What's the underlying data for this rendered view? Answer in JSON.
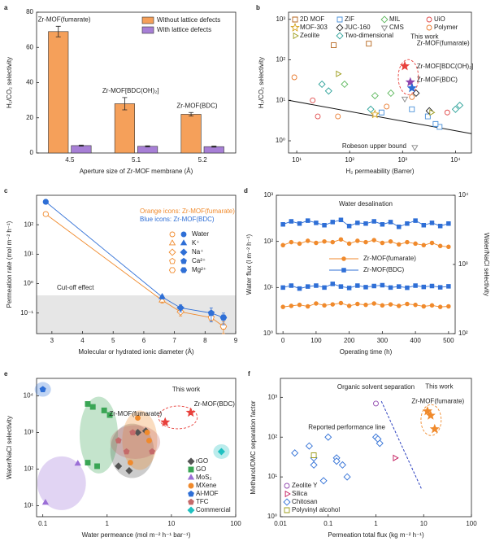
{
  "chart_data": [
    {
      "type": "bar",
      "label": "a",
      "xlabel": "Aperture size of Zr-MOF membrane (Å)",
      "ylabel": "H₂/CO₂ selectivity",
      "categories": [
        "4.5",
        "5.1",
        "5.2"
      ],
      "annotations": [
        "Zr-MOF(fumarate)",
        "Zr-MOF[BDC(OH)₂]",
        "Zr-MOF(BDC)"
      ],
      "series": [
        {
          "name": "Without lattice defects",
          "color": "#f5a05a",
          "values": [
            69,
            28,
            22
          ],
          "errors": [
            3,
            3.5,
            1
          ]
        },
        {
          "name": "With lattice defects",
          "color": "#a77fd6",
          "values": [
            4.2,
            3.8,
            3.6
          ],
          "errors": [
            0.3,
            0.3,
            0.3
          ]
        }
      ],
      "ylim": [
        0,
        80
      ],
      "yticks": [
        0,
        20,
        40,
        60,
        80
      ],
      "legend": "upper right"
    },
    {
      "type": "scatter",
      "label": "b",
      "xlabel": "H₂ permeability (Barrer)",
      "ylabel": "H₂/CO₂ selectivity",
      "xlog": true,
      "ylog": true,
      "open_markers": true,
      "xlim": [
        7,
        20000
      ],
      "ylim": [
        0.5,
        1500
      ],
      "xticks": [
        {
          "value": 10,
          "label": "10¹"
        },
        {
          "value": 100,
          "label": "10²"
        },
        {
          "value": 1000,
          "label": "10³"
        },
        {
          "value": 10000,
          "label": "10⁴"
        }
      ],
      "yticks": [
        {
          "value": 1,
          "label": "10⁰"
        },
        {
          "value": 10,
          "label": "10¹"
        },
        {
          "value": 100,
          "label": "10²"
        },
        {
          "value": 1000,
          "label": "10³"
        }
      ],
      "legend": "top",
      "series": [
        {
          "name": "2D MOF",
          "color": "#b5651d",
          "marker": "square",
          "x": [
            50,
            230
          ],
          "values": [
            230,
            250
          ]
        },
        {
          "name": "ZIF",
          "color": "#4a90d9",
          "marker": "square",
          "x": [
            400,
            1500,
            3000,
            5000,
            4200
          ],
          "values": [
            5,
            6,
            4,
            2.2,
            2.6
          ]
        },
        {
          "name": "MIL",
          "color": "#5cb85c",
          "marker": "diamond",
          "x": [
            80,
            300,
            600
          ],
          "values": [
            25,
            13,
            15
          ]
        },
        {
          "name": "UiO",
          "color": "#e04848",
          "marker": "circle",
          "x": [
            20,
            7000,
            25
          ],
          "values": [
            10,
            5,
            4
          ]
        },
        {
          "name": "MOF-303",
          "color": "#d4a017",
          "marker": "star",
          "x": [
            300
          ],
          "values": [
            4.5
          ]
        },
        {
          "name": "JUC-160",
          "color": "#222222",
          "marker": "diamond",
          "x": [
            1800,
            3200
          ],
          "values": [
            15,
            5.5
          ]
        },
        {
          "name": "CMS",
          "color": "#888888",
          "marker": "tri-down",
          "x": [
            1700,
            1100
          ],
          "values": [
            0.7,
            11
          ]
        },
        {
          "name": "Polymer",
          "color": "#e87a2e",
          "marker": "circle",
          "x": [
            9,
            500,
            1500,
            60
          ],
          "values": [
            37,
            7,
            12,
            4
          ]
        },
        {
          "name": "Zeolite",
          "color": "#9c9c1a",
          "marker": "tri-right",
          "x": [
            60,
            3500
          ],
          "values": [
            45,
            5
          ]
        },
        {
          "name": "Two-dimensional",
          "color": "#2aa198",
          "marker": "diamond",
          "x": [
            30,
            12000,
            10000,
            250,
            40
          ],
          "values": [
            25,
            7.5,
            6,
            6,
            17
          ]
        }
      ],
      "line": {
        "name": "Robeson upper bound",
        "x": [
          7,
          20000
        ],
        "values": [
          10,
          1.5
        ]
      },
      "highlight": {
        "x": [
          1100,
          1400,
          1500
        ],
        "values": [
          70,
          28,
          20
        ],
        "labels": [
          "Zr-MOF(fumarate)",
          "Zr-MOF[BDC(OH)₂]",
          "Zr-MOF(BDC)"
        ],
        "colors": [
          "#e8413c",
          "#8e44ad",
          "#2d6fd6"
        ]
      },
      "note": "This work"
    },
    {
      "type": "line",
      "label": "c",
      "xlabel": "Molecular or hydrated ionic diameter (Å)",
      "ylabel": "Permeation rate (mol m⁻² h⁻¹)",
      "ylog": true,
      "xlim": [
        2.5,
        9
      ],
      "xticks": [
        3,
        4,
        5,
        6,
        7,
        8,
        9
      ],
      "ylim": [
        0.02,
        1000
      ],
      "yticks": [
        {
          "value": 0.1,
          "label": "10⁻¹"
        },
        {
          "value": 1,
          "label": "10⁰"
        },
        {
          "value": 10,
          "label": "10¹"
        },
        {
          "value": 100,
          "label": "10²"
        }
      ],
      "x": [
        2.8,
        6.6,
        7.2,
        8.2,
        8.6
      ],
      "species": [
        "Water",
        "K⁺",
        "Na⁺",
        "Ca²⁺",
        "Mg²⁺"
      ],
      "markers": [
        "circle",
        "triangle",
        "diamond",
        "pentagon",
        "hexagon"
      ],
      "shade_below": 0.4,
      "shade_label": "Cut-off effect",
      "series": [
        {
          "name": "Orange icons: Zr-MOF(fumarate)",
          "color": "#f08a2c",
          "open": true,
          "values": [
            230,
            0.27,
            0.11,
            0.07,
            0.035
          ],
          "errors": [
            0,
            0.05,
            0.03,
            0.02,
            0.015
          ]
        },
        {
          "name": "Blue icons: Zr-MOF(BDC)",
          "color": "#2f6fd6",
          "open": false,
          "values": [
            600,
            0.35,
            0.15,
            0.1,
            0.07
          ],
          "errors": [
            0,
            0.05,
            0.04,
            0.05,
            0.03
          ]
        }
      ]
    },
    {
      "type": "line",
      "label": "d",
      "title": "Water desalination",
      "xlabel": "Operating time (h)",
      "ylabel": "Water flux (l m⁻² h⁻¹)",
      "y2label": "Water/NaCl selectivity",
      "ylog": true,
      "y2log": true,
      "xlim": [
        -20,
        520
      ],
      "xticks": [
        0,
        100,
        200,
        300,
        400,
        500
      ],
      "ylim": [
        1,
        1000
      ],
      "yticks": [
        {
          "value": 1,
          "label": "10⁰"
        },
        {
          "value": 10,
          "label": "10¹"
        },
        {
          "value": 100,
          "label": "10²"
        },
        {
          "value": 1000,
          "label": "10³"
        }
      ],
      "y2lim": [
        100,
        10000
      ],
      "y2ticks": [
        {
          "value": 100,
          "label": "10²"
        },
        {
          "value": 1000,
          "label": "10³"
        },
        {
          "value": 10000,
          "label": "10⁴"
        }
      ],
      "x": [
        0,
        25,
        50,
        75,
        100,
        125,
        150,
        175,
        200,
        225,
        250,
        275,
        300,
        325,
        350,
        375,
        400,
        425,
        450,
        475,
        500
      ],
      "series": [
        {
          "name": "Zr-MOF(fumarate)",
          "color": "#f08a2c",
          "marker": "circle",
          "values": [
            3.8,
            4.0,
            4.2,
            3.9,
            4.5,
            4.1,
            4.3,
            4.6,
            4.0,
            4.4,
            4.2,
            4.5,
            4.1,
            4.3,
            4.0,
            4.4,
            4.2,
            3.9,
            4.1,
            3.8,
            3.9
          ]
        },
        {
          "name": "Zr-MOF(BDC)",
          "color": "#2f6fd6",
          "marker": "square",
          "values": [
            10,
            11,
            9.5,
            10.5,
            11,
            10,
            12,
            10.5,
            9.8,
            11,
            10.2,
            10.8,
            11.2,
            10,
            10.5,
            9.9,
            11,
            10.3,
            10.8,
            10.1,
            10.6
          ]
        },
        {
          "color": "#f08a2c",
          "marker": "circle",
          "axis": "y2",
          "values": [
            1900,
            2100,
            2000,
            2200,
            2050,
            2150,
            2100,
            2300,
            2000,
            2200,
            2100,
            2250,
            2050,
            2150,
            1950,
            2100,
            2000,
            1900,
            2050,
            1850,
            1800
          ]
        },
        {
          "color": "#2f6fd6",
          "marker": "square",
          "axis": "y2",
          "values": [
            3800,
            4200,
            3900,
            4300,
            4000,
            3700,
            4100,
            4400,
            3600,
            4000,
            3900,
            4200,
            3800,
            4100,
            3500,
            3900,
            4300,
            3700,
            4000,
            3600,
            3900
          ]
        }
      ]
    },
    {
      "type": "scatter",
      "label": "e",
      "xlabel": "Water permeance (mol m⁻² h⁻¹ bar⁻¹)",
      "ylabel": "Water/NaCl selectivity",
      "xlog": true,
      "ylog": true,
      "xlim": [
        0.08,
        100
      ],
      "xticks": [
        0.1,
        1,
        10,
        100
      ],
      "ylim": [
        5,
        30000
      ],
      "yticks": [
        {
          "value": 10,
          "label": "10¹"
        },
        {
          "value": 100,
          "label": "10²"
        },
        {
          "value": 1000,
          "label": "10³"
        },
        {
          "value": 10000,
          "label": "10⁴"
        }
      ],
      "regions": true,
      "legend": "lower right",
      "series": [
        {
          "name": "rGO",
          "color": "#555555",
          "marker": "diamond",
          "x": [
            1.5,
            2.2,
            3,
            4
          ],
          "values": [
            120,
            90,
            1000,
            1100
          ]
        },
        {
          "name": "GO",
          "color": "#3aa655",
          "marker": "square",
          "x": [
            0.5,
            0.6,
            0.9,
            1.1,
            0.5,
            0.7
          ],
          "values": [
            6000,
            5000,
            4000,
            3000,
            150,
            120
          ]
        },
        {
          "name": "MoS₂",
          "color": "#9b6fd6",
          "marker": "triangle",
          "x": [
            0.11,
            0.35
          ],
          "values": [
            12,
            140
          ]
        },
        {
          "name": "MXene",
          "color": "#f08a2c",
          "marker": "circle",
          "x": [
            3,
            4.2,
            4.5,
            2.3
          ],
          "values": [
            2500,
            1000,
            600,
            150
          ]
        },
        {
          "name": "Al-MOF",
          "color": "#2f6fd6",
          "marker": "pentagon",
          "x": [
            0.1
          ],
          "values": [
            15000
          ]
        },
        {
          "name": "TFC",
          "color": "#c46a6a",
          "marker": "pentagon",
          "x": [
            1.5,
            2.5,
            5,
            2
          ],
          "values": [
            600,
            1000,
            300,
            300
          ]
        },
        {
          "name": "Commercial",
          "color": "#1fc1c1",
          "marker": "diamond",
          "x": [
            60
          ],
          "values": [
            300
          ]
        }
      ],
      "highlight": {
        "x": [
          8,
          20
        ],
        "values": [
          1900,
          3500
        ],
        "labels": [
          "Zr-MOF(fumarate)",
          "Zr-MOF(BDC)"
        ],
        "colors": [
          "#e8413c",
          "#e8413c"
        ]
      },
      "note": "This work"
    },
    {
      "type": "scatter",
      "label": "f",
      "title": "Organic solvent separation",
      "xlabel": "Permeation total flux (kg m⁻² h⁻¹)",
      "ylabel": "Methanol/DMC separation factor",
      "xlog": true,
      "ylog": true,
      "open_markers": true,
      "xlim": [
        0.01,
        100
      ],
      "xticks": [
        0.01,
        0.1,
        1,
        10,
        100
      ],
      "ylim": [
        1,
        3000
      ],
      "yticks": [
        {
          "value": 1,
          "label": "10⁰"
        },
        {
          "value": 10,
          "label": "10¹"
        },
        {
          "value": 100,
          "label": "10²"
        },
        {
          "value": 1000,
          "label": "10³"
        }
      ],
      "legend": "lower left",
      "series": [
        {
          "name": "Zeolite Y",
          "color": "#8e44ad",
          "marker": "circle",
          "x": [
            1
          ],
          "values": [
            700
          ]
        },
        {
          "name": "Silica",
          "color": "#c2185b",
          "marker": "tri-right",
          "x": [
            2.5
          ],
          "values": [
            30
          ]
        },
        {
          "name": "Chitosan",
          "color": "#2f6fd6",
          "marker": "diamond",
          "x": [
            0.02,
            0.04,
            0.05,
            0.05,
            0.1,
            0.15,
            0.15,
            0.2,
            0.25,
            0.08,
            1,
            1.1,
            1.2
          ],
          "values": [
            40,
            60,
            30,
            20,
            100,
            30,
            25,
            20,
            10,
            8,
            100,
            90,
            70
          ]
        },
        {
          "name": "Polyvinyl alcohol",
          "color": "#9c9c1a",
          "marker": "square",
          "x": [
            0.05
          ],
          "values": [
            35
          ]
        }
      ],
      "line": {
        "name": "Reported performance line",
        "x": [
          1.3,
          9
        ],
        "values": [
          800,
          5
        ],
        "dashed": true
      },
      "highlight": {
        "name": "Zr-MOF(fumarate)",
        "color": "#f08a2c",
        "x": [
          12,
          14,
          17
        ],
        "values": [
          450,
          350,
          160
        ]
      },
      "note": "This work"
    }
  ]
}
